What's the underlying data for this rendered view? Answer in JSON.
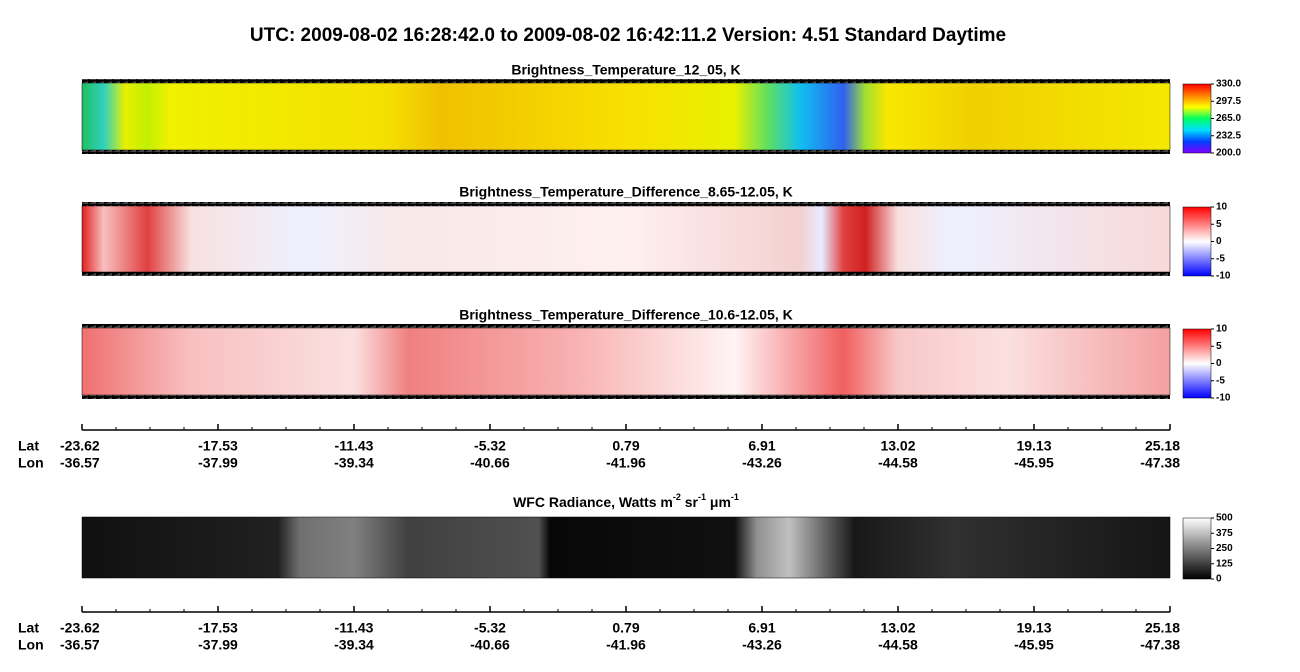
{
  "title": "UTC:  2009-08-02   16:28:42.0  to  2009-08-02   16:42:11.2    Version: 4.51  Standard Daytime",
  "chart_data": [
    {
      "type": "image",
      "title": "Brightness_Temperature_12_05, K",
      "clim": [
        200,
        330
      ],
      "colormap": [
        "#8000ff",
        "#0040ff",
        "#00e0ff",
        "#00ff60",
        "#ffff00",
        "#ff8000",
        "#ff0000"
      ],
      "cticks": [
        {
          "value": 200,
          "label": "200.0"
        },
        232.5,
        {
          "value": 265,
          "label": "265.0"
        },
        297.5,
        {
          "value": 330,
          "label": "330.0"
        }
      ]
    },
    {
      "type": "image",
      "title": "Brightness_Temperature_Difference_8.65-12.05, K",
      "clim": [
        -10,
        10
      ],
      "colormap": [
        "#0000ff",
        "#ffffff",
        "#ff0000"
      ],
      "cticks": [
        -10,
        -5,
        0,
        5,
        10
      ]
    },
    {
      "type": "image",
      "title": "Brightness_Temperature_Difference_10.6-12.05, K",
      "clim": [
        -10,
        10
      ],
      "colormap": [
        "#0000ff",
        "#ffffff",
        "#ff0000"
      ],
      "cticks": [
        -10,
        -5,
        0,
        5,
        10
      ]
    },
    {
      "type": "image",
      "title": [
        "WFC Radiance, Watts m",
        "-2",
        " sr",
        "-1",
        " μm",
        "-1"
      ],
      "clim": [
        0,
        500
      ],
      "colormap": [
        "#000000",
        "#ffffff"
      ],
      "cticks": [
        0,
        125,
        250,
        375,
        500
      ]
    }
  ],
  "axes": [
    {
      "lat_label": "Lat",
      "lon_label": "Lon",
      "lat": [
        -23.62,
        -17.53,
        -11.43,
        -5.32,
        0.79,
        6.91,
        13.02,
        19.13,
        25.18
      ],
      "lon": [
        -36.57,
        -37.99,
        -39.34,
        -40.66,
        -41.96,
        -43.26,
        -44.58,
        -45.95,
        -47.38
      ]
    },
    {
      "lat_label": "Lat",
      "lon_label": "Lon",
      "lat": [
        -23.62,
        -17.53,
        -11.43,
        -5.32,
        0.79,
        6.91,
        13.02,
        19.13,
        25.18
      ],
      "lon": [
        -36.57,
        -37.99,
        -39.34,
        -40.66,
        -41.96,
        -43.26,
        -44.58,
        -45.95,
        -47.38
      ]
    }
  ]
}
